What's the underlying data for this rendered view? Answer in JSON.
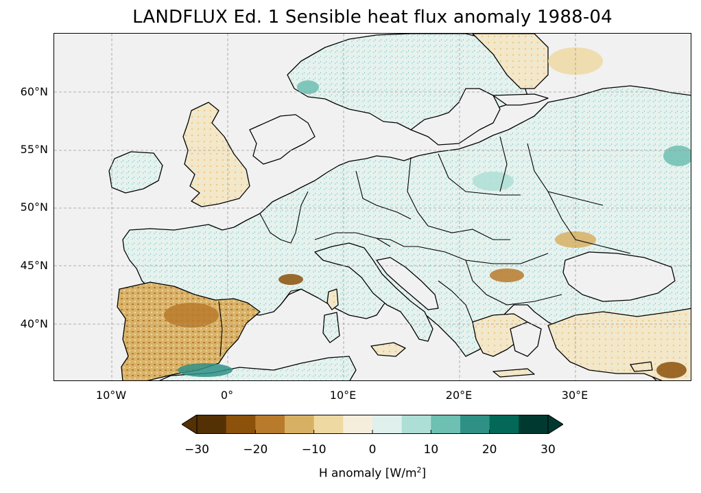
{
  "title": "LANDFLUX Ed. 1 Sensible heat flux anomaly 1988-04",
  "map": {
    "projection": "PlateCarree",
    "extent": {
      "lon": [
        -15,
        40
      ],
      "lat": [
        35,
        65
      ]
    },
    "ocean_color": "#f1f1f1",
    "coastline_color": "#000000",
    "gridlines": "dashed grey",
    "lat_ticks": [
      "40°N",
      "45°N",
      "50°N",
      "55°N",
      "60°N"
    ],
    "lon_ticks": [
      "10°W",
      "0°",
      "10°E",
      "20°E",
      "30°E"
    ]
  },
  "colorbar": {
    "label_prefix": "H anomaly [W/m",
    "label_exp": "2",
    "label_suffix": "]",
    "extend": "both",
    "levels": [
      -30,
      -25,
      -20,
      -15,
      -10,
      -5,
      0,
      5,
      10,
      15,
      20,
      25,
      30
    ],
    "tick_labels": [
      "−30",
      "−20",
      "−10",
      "0",
      "10",
      "20",
      "30"
    ],
    "colors": [
      "#543005",
      "#8c510a",
      "#b87a2b",
      "#d8b064",
      "#efd9a3",
      "#f6eedc",
      "#dff0ed",
      "#aedfd6",
      "#6dc0b2",
      "#2f9086",
      "#036857",
      "#00392f"
    ]
  }
}
